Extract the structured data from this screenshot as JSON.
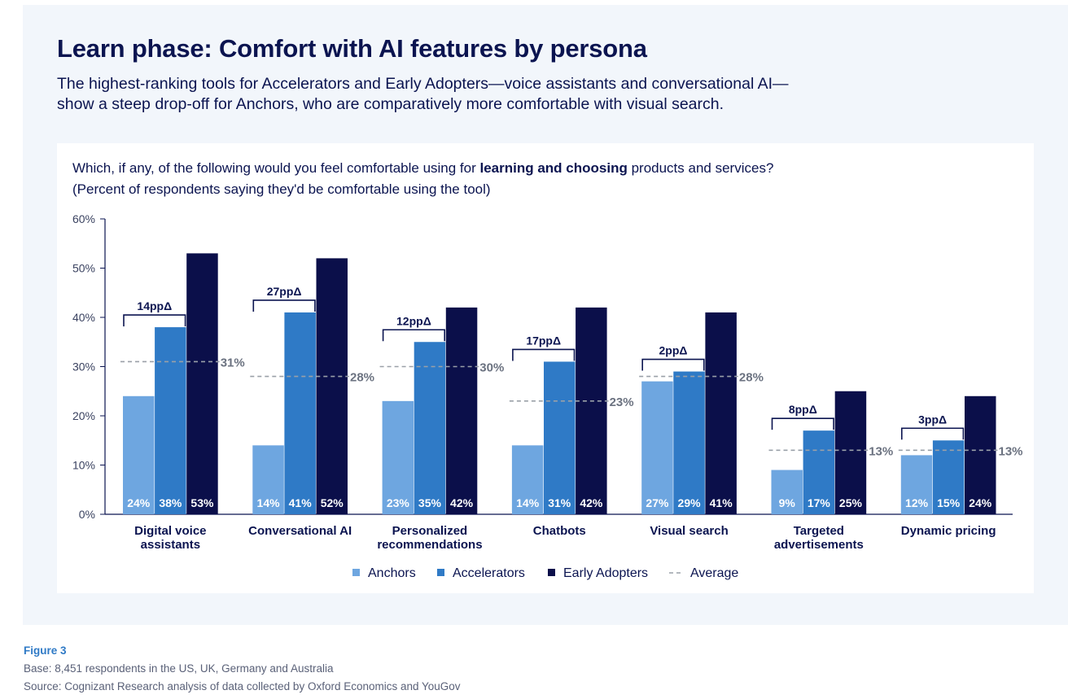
{
  "header": {
    "title": "Learn phase: Comfort with AI features by persona",
    "subtitle_line1": "The highest-ranking tools for Accelerators and Early Adopters—voice assistants and conversational AI—",
    "subtitle_line2": "show a steep drop-off for Anchors, who are comparatively more comfortable with visual search."
  },
  "question": {
    "prefix": "Which, if any, of the following would you feel comfortable using for ",
    "bold": "learning and choosing",
    "suffix": " products and services?",
    "line2": "(Percent of respondents saying they'd be comfortable using the tool)"
  },
  "colors": {
    "anchors": "#6ea6e0",
    "accelerators": "#2f7ac6",
    "early_adopters": "#0b0f4a",
    "average": "#9aa0a8",
    "axis": "#0b1450"
  },
  "chart_data": {
    "type": "bar",
    "ylim": [
      0,
      60
    ],
    "yticks": [
      "0%",
      "10%",
      "20%",
      "30%",
      "40%",
      "50%",
      "60%"
    ],
    "categories": [
      [
        "Digital voice",
        "assistants"
      ],
      [
        "Conversational AI"
      ],
      [
        "Personalized",
        "recommendations"
      ],
      [
        "Chatbots"
      ],
      [
        "Visual search"
      ],
      [
        "Targeted",
        "advertisements"
      ],
      [
        "Dynamic pricing"
      ]
    ],
    "series": [
      {
        "name": "Anchors",
        "values": [
          24,
          14,
          23,
          14,
          27,
          9,
          12
        ],
        "labels": [
          "24%",
          "14%",
          "23%",
          "14%",
          "27%",
          "9%",
          "12%"
        ]
      },
      {
        "name": "Accelerators",
        "values": [
          38,
          41,
          35,
          31,
          29,
          17,
          15
        ],
        "labels": [
          "38%",
          "41%",
          "35%",
          "31%",
          "29%",
          "17%",
          "15%"
        ]
      },
      {
        "name": "Early Adopters",
        "values": [
          53,
          52,
          42,
          42,
          41,
          25,
          24
        ],
        "labels": [
          "53%",
          "52%",
          "42%",
          "42%",
          "41%",
          "25%",
          "24%"
        ]
      }
    ],
    "average": {
      "name": "Average",
      "values": [
        31,
        28,
        30,
        23,
        28,
        13,
        13
      ],
      "labels": [
        "31%",
        "28%",
        "30%",
        "23%",
        "28%",
        "13%",
        "13%"
      ]
    },
    "deltas": [
      "14ppΔ",
      "27ppΔ",
      "12ppΔ",
      "17ppΔ",
      "2ppΔ",
      "8ppΔ",
      "3ppΔ"
    ],
    "legend": [
      "Anchors",
      "Accelerators",
      "Early Adopters",
      "Average"
    ],
    "legend_position": "bottom-center",
    "grid": false
  },
  "footer": {
    "figure_label": "Figure 3",
    "base": "Base: 8,451 respondents in the US, UK, Germany and Australia",
    "source": "Source: Cognizant Research analysis of data collected by Oxford Economics and YouGov"
  }
}
